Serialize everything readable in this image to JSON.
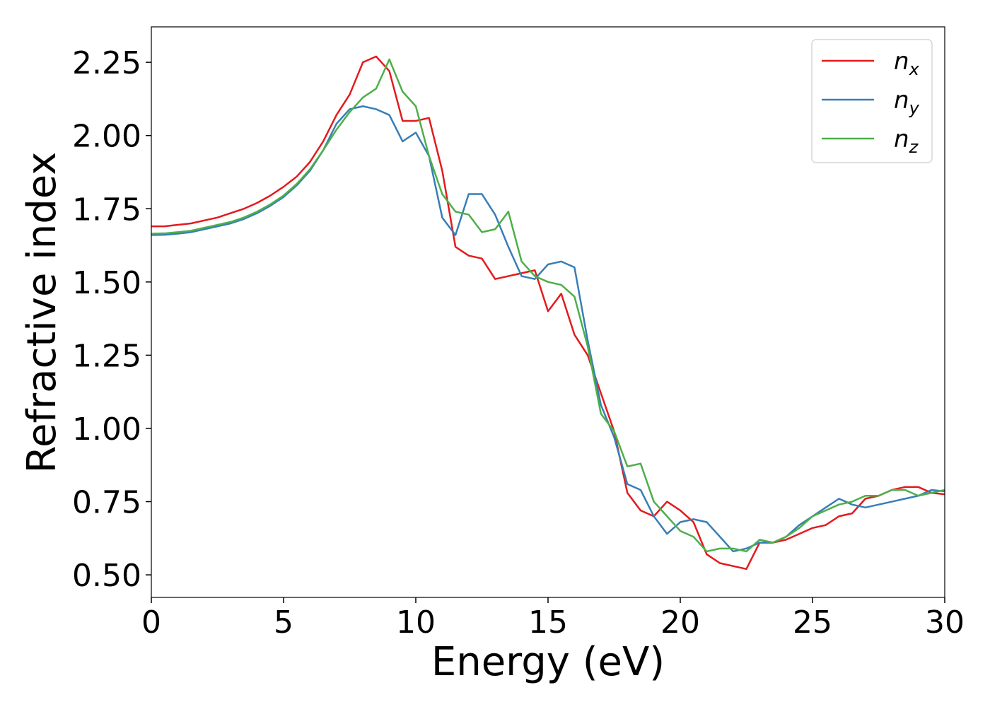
{
  "chart_data": {
    "type": "line",
    "xlabel": "Energy (eV)",
    "ylabel": "Refractive index",
    "x": [
      0,
      0.5,
      1,
      1.5,
      2,
      2.5,
      3,
      3.5,
      4,
      4.5,
      5,
      5.5,
      6,
      6.5,
      7,
      7.5,
      8,
      8.5,
      9,
      9.5,
      10,
      10.5,
      11,
      11.5,
      12,
      12.5,
      13,
      13.5,
      14,
      14.5,
      15,
      15.5,
      16,
      16.5,
      17,
      17.5,
      18,
      18.5,
      19,
      19.5,
      20,
      20.5,
      21,
      21.5,
      22,
      22.5,
      23,
      23.5,
      24,
      24.5,
      25,
      25.5,
      26,
      26.5,
      27,
      27.5,
      28,
      28.5,
      29,
      29.5,
      30
    ],
    "series": [
      {
        "name": "nx",
        "color": "#e41a1c",
        "values": [
          1.69,
          1.69,
          1.695,
          1.7,
          1.71,
          1.72,
          1.735,
          1.75,
          1.77,
          1.795,
          1.825,
          1.86,
          1.91,
          1.98,
          2.07,
          2.14,
          2.25,
          2.27,
          2.22,
          2.05,
          2.05,
          2.06,
          1.88,
          1.62,
          1.59,
          1.58,
          1.51,
          1.52,
          1.53,
          1.54,
          1.4,
          1.46,
          1.32,
          1.25,
          1.12,
          0.99,
          0.78,
          0.72,
          0.7,
          0.75,
          0.72,
          0.68,
          0.57,
          0.54,
          0.53,
          0.52,
          0.61,
          0.61,
          0.62,
          0.64,
          0.66,
          0.67,
          0.7,
          0.71,
          0.76,
          0.77,
          0.79,
          0.8,
          0.8,
          0.78,
          0.775
        ]
      },
      {
        "name": "ny",
        "color": "#377eb8",
        "values": [
          1.66,
          1.661,
          1.665,
          1.67,
          1.68,
          1.69,
          1.7,
          1.715,
          1.735,
          1.76,
          1.79,
          1.83,
          1.88,
          1.95,
          2.04,
          2.09,
          2.1,
          2.09,
          2.07,
          1.98,
          2.01,
          1.93,
          1.72,
          1.66,
          1.8,
          1.8,
          1.73,
          1.62,
          1.52,
          1.51,
          1.56,
          1.57,
          1.55,
          1.3,
          1.08,
          0.97,
          0.81,
          0.79,
          0.7,
          0.64,
          0.68,
          0.69,
          0.68,
          0.63,
          0.58,
          0.59,
          0.61,
          0.61,
          0.63,
          0.67,
          0.7,
          0.73,
          0.76,
          0.74,
          0.73,
          0.74,
          0.75,
          0.76,
          0.77,
          0.79,
          0.785
        ]
      },
      {
        "name": "nz",
        "color": "#4daf4a",
        "values": [
          1.665,
          1.666,
          1.67,
          1.675,
          1.685,
          1.695,
          1.705,
          1.72,
          1.74,
          1.765,
          1.795,
          1.835,
          1.885,
          1.95,
          2.02,
          2.08,
          2.13,
          2.16,
          2.26,
          2.15,
          2.1,
          1.93,
          1.8,
          1.74,
          1.73,
          1.67,
          1.68,
          1.74,
          1.57,
          1.52,
          1.5,
          1.49,
          1.45,
          1.28,
          1.05,
          0.99,
          0.87,
          0.88,
          0.75,
          0.7,
          0.65,
          0.63,
          0.58,
          0.59,
          0.59,
          0.58,
          0.62,
          0.61,
          0.63,
          0.66,
          0.7,
          0.72,
          0.74,
          0.75,
          0.77,
          0.77,
          0.79,
          0.79,
          0.77,
          0.78,
          0.79
        ]
      }
    ],
    "xlim": [
      0,
      30
    ],
    "xticks": [
      0,
      5,
      10,
      15,
      20,
      25,
      30
    ],
    "ylim": [
      0.423,
      2.371
    ],
    "yticks": [
      {
        "value": 0.5,
        "label": "0.50"
      },
      0.75,
      {
        "value": 1.0,
        "label": "1.00"
      },
      1.25,
      {
        "value": 1.5,
        "label": "1.50"
      },
      1.75,
      {
        "value": 2.0,
        "label": "2.00"
      },
      2.25
    ],
    "grid": false,
    "legend": "upper right"
  }
}
